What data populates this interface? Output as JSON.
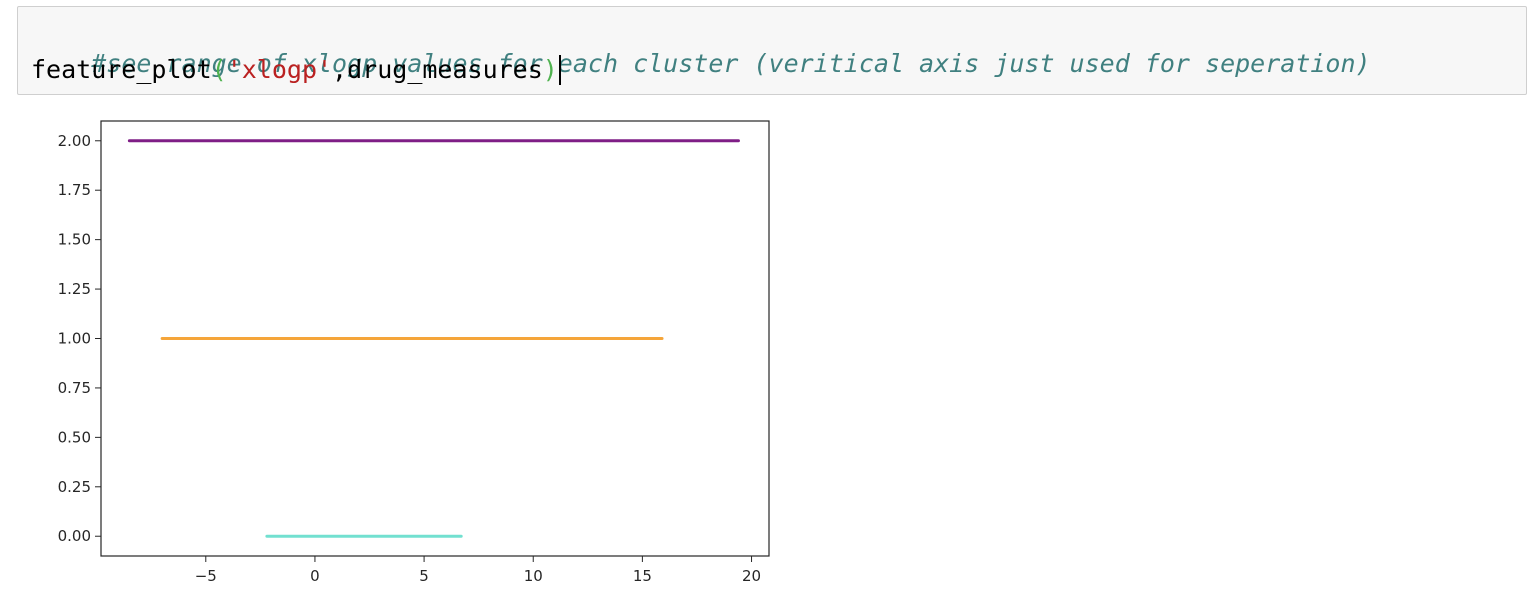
{
  "code_cell": {
    "comment": "#see range of xlogp values for each cluster (veritical axis just used for seperation)",
    "func_name": "feature_plot",
    "open_paren": "(",
    "string_arg": "'xlogp'",
    "comma": ",",
    "var_arg": "drug_measures",
    "close_paren": ")"
  },
  "chart_data": {
    "type": "line",
    "xlim": [
      -9.8,
      20.8
    ],
    "ylim": [
      -0.1,
      2.1
    ],
    "x_ticks": [
      -5,
      0,
      5,
      10,
      15,
      20
    ],
    "x_tick_labels": [
      "−5",
      "0",
      "5",
      "10",
      "15",
      "20"
    ],
    "y_ticks": [
      0.0,
      0.25,
      0.5,
      0.75,
      1.0,
      1.25,
      1.5,
      1.75,
      2.0
    ],
    "y_tick_labels": [
      "0.00",
      "0.25",
      "0.50",
      "0.75",
      "1.00",
      "1.25",
      "1.50",
      "1.75",
      "2.00"
    ],
    "grid": false,
    "series": [
      {
        "y": 0,
        "x": [
          -2.2,
          6.7
        ],
        "color": "#72e0d0"
      },
      {
        "y": 1,
        "x": [
          -7.0,
          15.9
        ],
        "color": "#f5a53a"
      },
      {
        "y": 2,
        "x": [
          -8.5,
          19.4
        ],
        "color": "#7f1e86"
      }
    ]
  }
}
